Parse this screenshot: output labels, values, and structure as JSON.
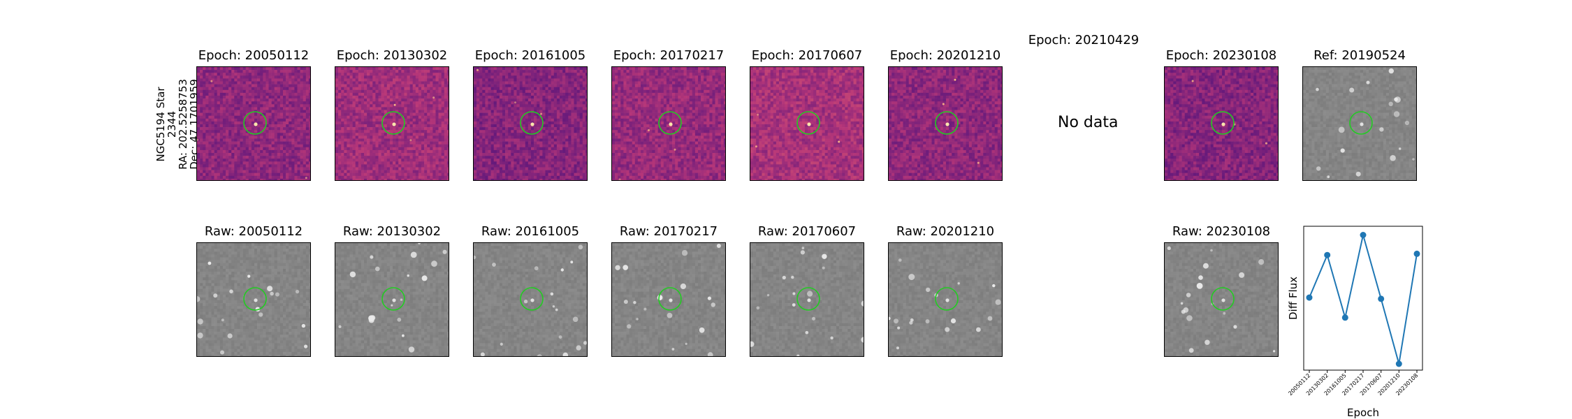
{
  "star_label": {
    "line1": "NGC5194 Star 2344",
    "line2": "RA: 202.5258753",
    "line3": "Dec: 47.1701959"
  },
  "diff_row": [
    {
      "title": "Epoch: 20050112",
      "has_data": true
    },
    {
      "title": "Epoch: 20130302",
      "has_data": true
    },
    {
      "title": "Epoch: 20161005",
      "has_data": true
    },
    {
      "title": "Epoch: 20170217",
      "has_data": true
    },
    {
      "title": "Epoch: 20170607",
      "has_data": true
    },
    {
      "title": "Epoch: 20201210",
      "has_data": true
    },
    {
      "title": "Epoch: 20210429",
      "has_data": false,
      "nodata_text": "No data"
    },
    {
      "title": "Epoch: 20230108",
      "has_data": true
    },
    {
      "title": "Ref: 20190524",
      "has_data": true
    }
  ],
  "raw_row": [
    {
      "title": "Raw: 20050112"
    },
    {
      "title": "Raw: 20130302"
    },
    {
      "title": "Raw: 20161005"
    },
    {
      "title": "Raw: 20170217"
    },
    {
      "title": "Raw: 20170607"
    },
    {
      "title": "Raw: 20201210"
    },
    {
      "title": "Raw: 20230108"
    }
  ],
  "colors": {
    "circle": "#22cc22",
    "diff_low": "#3b0f70",
    "diff_mid": "#b63679",
    "raw_bg": "#7a7a7a",
    "line": "#1f77b4"
  },
  "chart_data": {
    "type": "line",
    "xlabel": "Epoch",
    "ylabel": "Diff Flux",
    "categories": [
      "20050112",
      "20130302",
      "20161005",
      "20170217",
      "20170607",
      "20201210",
      "20230108"
    ],
    "series": [
      {
        "values": [
          0.48,
          0.82,
          0.32,
          0.98,
          0.47,
          -0.05,
          0.83
        ]
      }
    ],
    "ylim": [
      -0.1,
      1.05
    ]
  }
}
